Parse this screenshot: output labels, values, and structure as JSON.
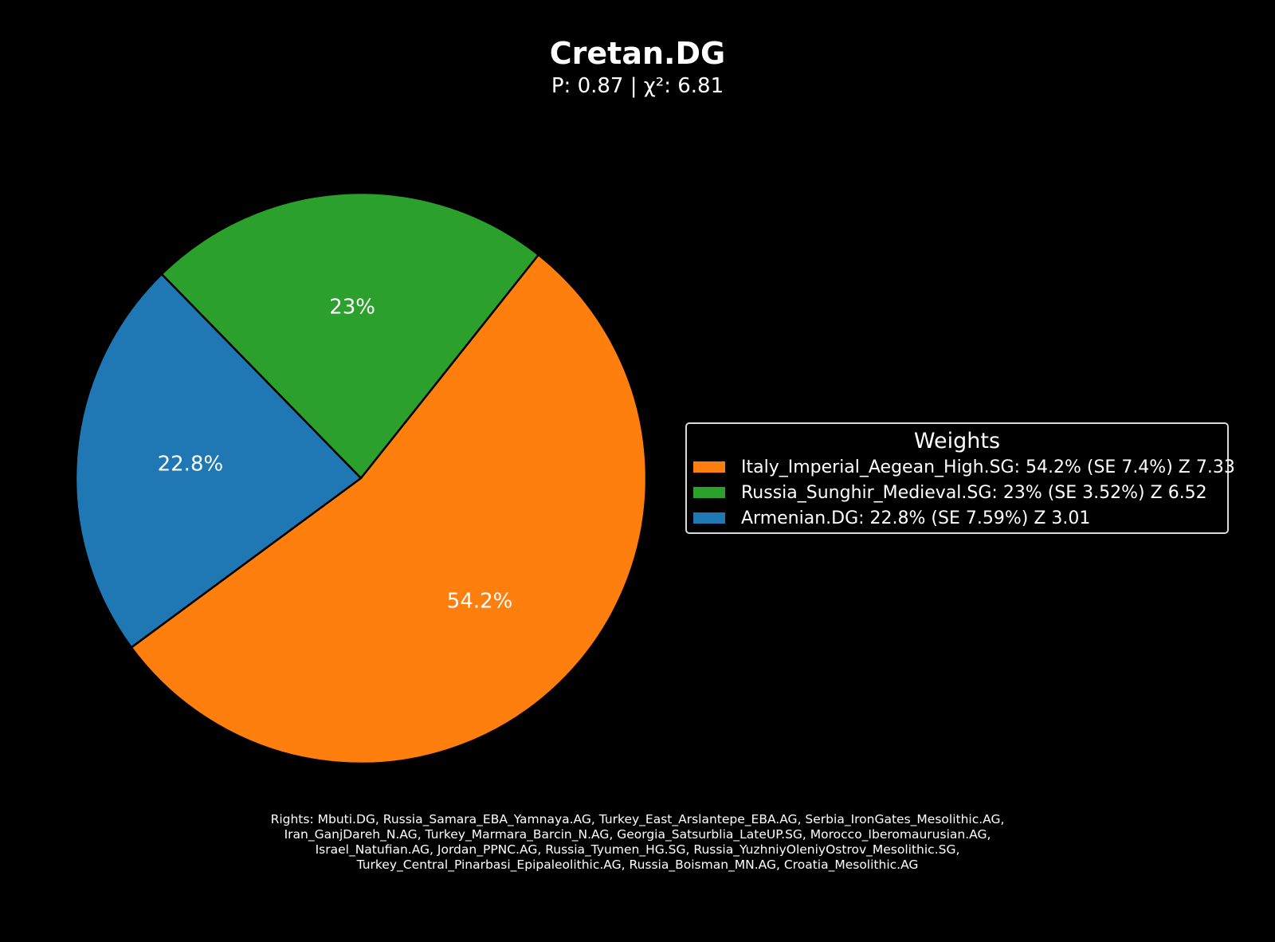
{
  "chart_data": {
    "type": "pie",
    "title": "Cretan.DG",
    "subtitle": "P: 0.87 | χ²: 6.81",
    "slices": [
      {
        "label": "Armenian.DG",
        "value": 22.8,
        "pct_label": "22.8%",
        "color": "#1f77b4"
      },
      {
        "label": "Russia_Sunghir_Medieval.SG",
        "value": 23.0,
        "pct_label": "23%",
        "color": "#2ca02c"
      },
      {
        "label": "Italy_Imperial_Aegean_High.SG",
        "value": 54.2,
        "pct_label": "54.2%",
        "color": "#ff7f0e"
      }
    ],
    "legend": {
      "title": "Weights",
      "placement": "right",
      "entries": [
        {
          "label": "Italy_Imperial_Aegean_High.SG: 54.2% (SE 7.4%) Z 7.33",
          "color": "#ff7f0e"
        },
        {
          "label": "Russia_Sunghir_Medieval.SG: 23% (SE 3.52%) Z 6.52",
          "color": "#2ca02c"
        },
        {
          "label": "Armenian.DG: 22.8% (SE 7.59%) Z 3.01",
          "color": "#1f77b4"
        }
      ]
    },
    "footnote_lines": [
      "Rights: Mbuti.DG, Russia_Samara_EBA_Yamnaya.AG, Turkey_East_Arslantepe_EBA.AG, Serbia_IronGates_Mesolithic.AG,",
      "Iran_GanjDareh_N.AG, Turkey_Marmara_Barcin_N.AG, Georgia_Satsurblia_LateUP.SG, Morocco_Iberomaurusian.AG,",
      "Israel_Natufian.AG, Jordan_PPNC.AG, Russia_Tyumen_HG.SG, Russia_YuzhniyOleniyOstrov_Mesolithic.SG,",
      "Turkey_Central_Pinarbasi_Epipaleolithic.AG, Russia_Boisman_MN.AG, Croatia_Mesolithic.AG"
    ]
  },
  "colors": {
    "background": "#000000",
    "text": "#ffffff",
    "slice_edge": "#000000",
    "legend_border": "#d9d9d9"
  }
}
